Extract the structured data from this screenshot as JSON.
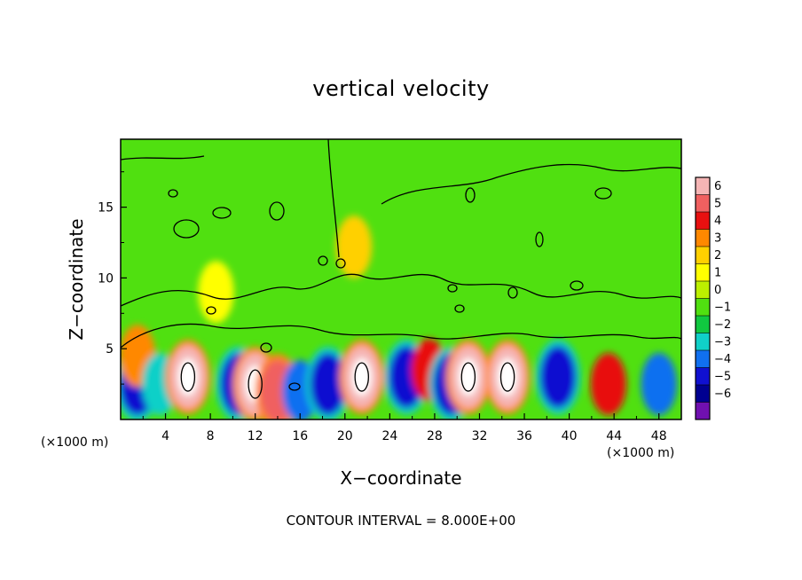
{
  "chart_data": {
    "type": "heatmap",
    "title": "vertical velocity",
    "xlabel": "X−coordinate",
    "ylabel": "Z−coordinate",
    "x_unit": "(×1000 m)",
    "z_unit": "(×1000 m)",
    "xlim": [
      0,
      50
    ],
    "ylim": [
      0,
      19.8
    ],
    "x_ticks": [
      4,
      8,
      12,
      16,
      20,
      24,
      28,
      32,
      36,
      40,
      44,
      48
    ],
    "y_ticks": [
      5,
      10,
      15
    ],
    "footer": "CONTOUR INTERVAL = 8.000E+00",
    "colorbar": {
      "labels": [
        "6",
        "5",
        "4",
        "3",
        "2",
        "1",
        "0",
        "−1",
        "−2",
        "−3",
        "−4",
        "−5",
        "−6"
      ],
      "colors": [
        "#f5b5b5",
        "#f06060",
        "#e81010",
        "#ff8800",
        "#ffd000",
        "#ffff00",
        "#bcf000",
        "#50e010",
        "#10c840",
        "#10d0c8",
        "#1070f0",
        "#1010d0",
        "#000090",
        "#7010b0"
      ]
    },
    "background_color": "#50e010",
    "cells": [
      {
        "x": 1.5,
        "z": 2.5,
        "w": -5
      },
      {
        "x": 1.5,
        "z": 4.5,
        "w": 3
      },
      {
        "x": 3.5,
        "z": 2.5,
        "w": -3
      },
      {
        "x": 6,
        "z": 3,
        "w": 6
      },
      {
        "x": 10.5,
        "z": 2.5,
        "w": -5
      },
      {
        "x": 12,
        "z": 2.5,
        "w": 6
      },
      {
        "x": 14,
        "z": 2,
        "w": 5
      },
      {
        "x": 16,
        "z": 2,
        "w": -4
      },
      {
        "x": 18.5,
        "z": 2.5,
        "w": -5
      },
      {
        "x": 21.5,
        "z": 3,
        "w": 6
      },
      {
        "x": 25.5,
        "z": 3,
        "w": -5
      },
      {
        "x": 27.5,
        "z": 3.5,
        "w": 4
      },
      {
        "x": 29.5,
        "z": 2.5,
        "w": -5
      },
      {
        "x": 31,
        "z": 3,
        "w": 6
      },
      {
        "x": 34.5,
        "z": 3,
        "w": 6
      },
      {
        "x": 39,
        "z": 3,
        "w": -5
      },
      {
        "x": 43.5,
        "z": 2.5,
        "w": 4
      },
      {
        "x": 48,
        "z": 2.5,
        "w": -4
      },
      {
        "x": 20.8,
        "z": 12.2,
        "w": 2
      },
      {
        "x": 8.5,
        "z": 9,
        "w": 1
      }
    ]
  },
  "texts": {
    "title": "vertical velocity",
    "xlabel": "X−coordinate",
    "ylabel": "Z−coordinate",
    "unit_left": "(×1000 m)",
    "unit_right": "(×1000 m)",
    "footer": "CONTOUR INTERVAL = 8.000E+00"
  }
}
